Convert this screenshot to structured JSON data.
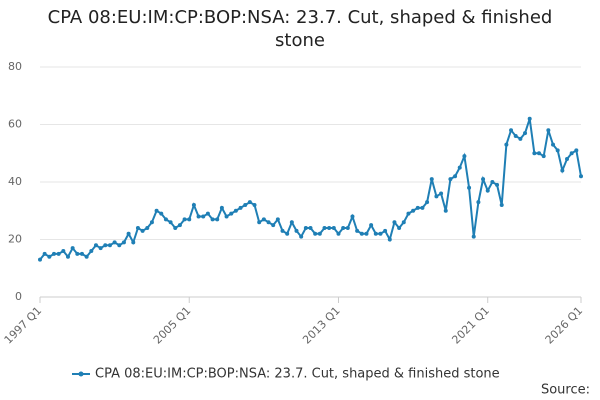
{
  "chart_data": {
    "type": "line",
    "title": "CPA 08:EU:IM:CP:BOP:NSA: 23.7. Cut, shaped & finished stone",
    "source": "Source:",
    "categories": [
      "1997 Q1",
      null,
      null,
      null,
      null,
      null,
      null,
      null,
      null,
      null,
      null,
      null,
      null,
      null,
      null,
      null,
      null,
      null,
      null,
      null,
      null,
      null,
      null,
      null,
      null,
      null,
      null,
      null,
      null,
      null,
      null,
      null,
      "2005 Q1",
      null,
      null,
      null,
      null,
      null,
      null,
      null,
      null,
      null,
      null,
      null,
      null,
      null,
      null,
      null,
      null,
      null,
      null,
      null,
      null,
      null,
      null,
      null,
      null,
      null,
      null,
      null,
      null,
      null,
      null,
      null,
      "2013 Q1",
      null,
      null,
      null,
      null,
      null,
      null,
      null,
      null,
      null,
      null,
      null,
      null,
      null,
      null,
      null,
      null,
      null,
      null,
      null,
      null,
      null,
      null,
      null,
      null,
      null,
      null,
      null,
      null,
      null,
      null,
      null,
      "2021 Q1",
      null,
      null,
      null,
      null,
      null,
      null,
      null,
      null,
      null,
      null,
      null,
      null,
      null,
      null,
      null,
      null,
      null,
      null,
      null,
      "2026 Q1"
    ],
    "series": [
      {
        "name": "CPA 08:EU:IM:CP:BOP:NSA: 23.7. Cut, shaped & finished stone",
        "color": "#1f7fb5",
        "values": [
          13,
          15,
          14,
          15,
          15,
          16,
          14,
          17,
          15,
          15,
          14,
          16,
          18,
          17,
          18,
          18,
          19,
          18,
          19,
          22,
          19,
          24,
          23,
          24,
          26,
          30,
          29,
          27,
          26,
          24,
          25,
          27,
          27,
          32,
          28,
          28,
          29,
          27,
          27,
          31,
          28,
          29,
          30,
          31,
          32,
          33,
          32,
          26,
          27,
          26,
          25,
          27,
          23,
          22,
          26,
          23,
          21,
          24,
          24,
          22,
          22,
          24,
          24,
          24,
          22,
          24,
          24,
          28,
          23,
          22,
          22,
          25,
          22,
          22,
          23,
          20,
          26,
          24,
          26,
          29,
          30,
          31,
          31,
          33,
          41,
          35,
          36,
          30,
          41,
          42,
          45,
          49,
          38,
          21,
          33,
          41,
          37,
          40,
          39,
          32,
          53,
          58,
          56,
          55,
          57,
          62,
          50,
          50,
          49,
          58,
          53,
          51,
          44,
          48,
          50,
          51,
          42
        ]
      }
    ],
    "ylim": [
      0,
      80
    ],
    "yticks": [
      0,
      20,
      40,
      60,
      80
    ],
    "grid": true
  }
}
